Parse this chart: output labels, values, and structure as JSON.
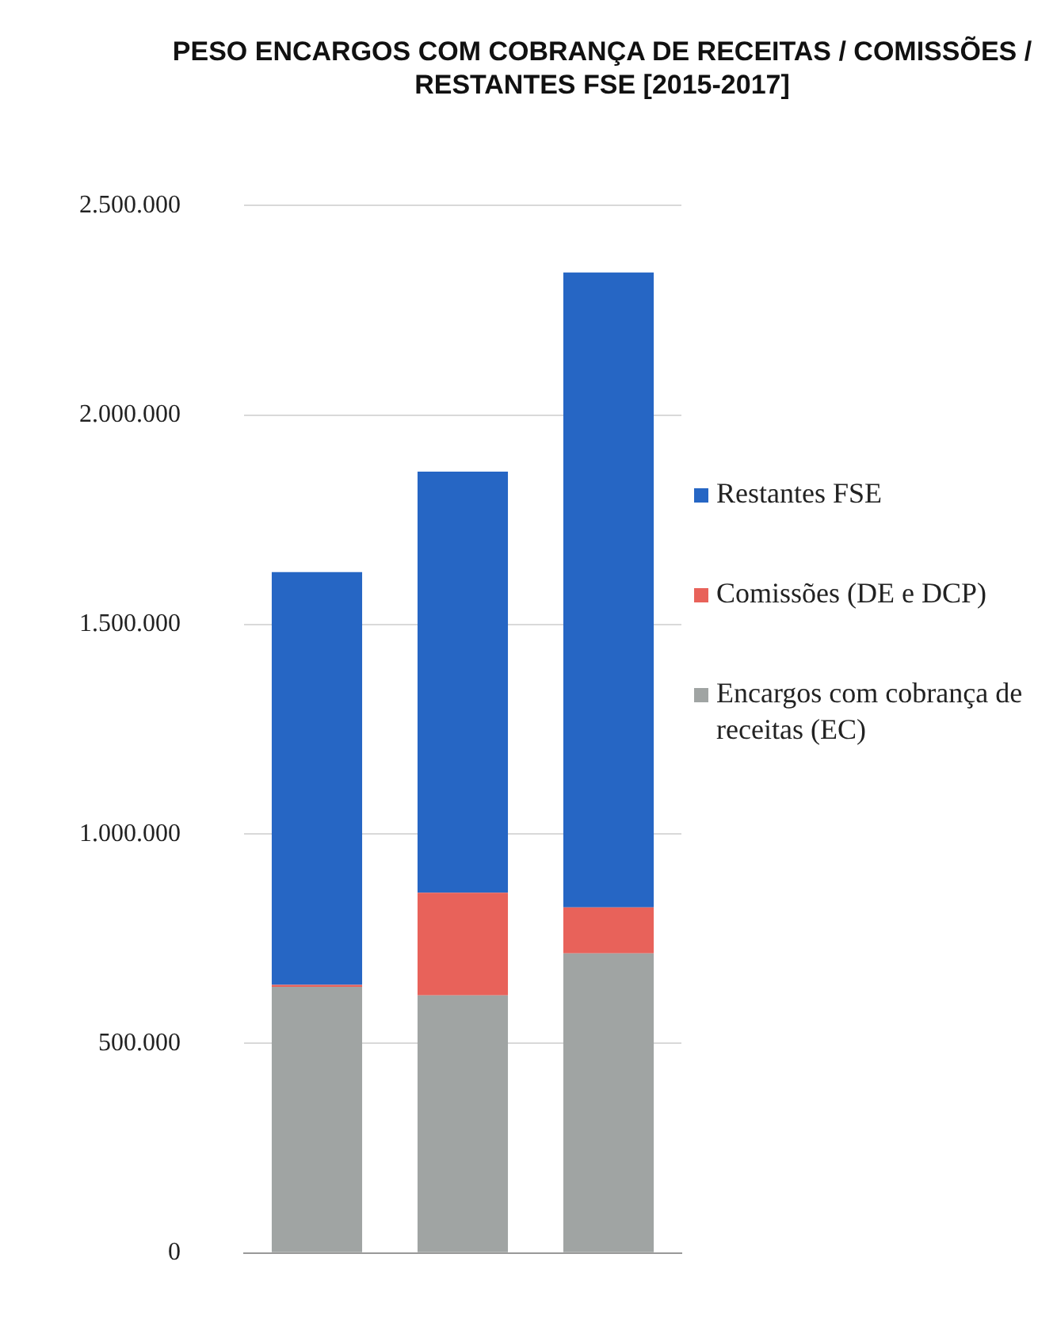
{
  "chart_data": {
    "type": "bar",
    "title": "PESO ENCARGOS COM COBRANÇA DE RECEITAS / COMISSÕES / RESTANTES FSE [2015-2017]",
    "categories": [
      null,
      null,
      null
    ],
    "stacked": true,
    "series": [
      {
        "name": "Encargos com cobrança de receitas (EC)",
        "color": "#a0a4a3",
        "values": [
          635000,
          615000,
          715000
        ]
      },
      {
        "name": "Comissões (DE e DCP)",
        "color": "#e8625a",
        "values": [
          5000,
          245000,
          110000
        ]
      },
      {
        "name": "Restantes FSE",
        "color": "#2666c4",
        "values": [
          985000,
          1005000,
          1515000
        ]
      }
    ],
    "ylim": [
      0,
      2500000
    ],
    "yticks": [
      {
        "value": 0,
        "label": "0"
      },
      {
        "value": 500000,
        "label": "500.000"
      },
      {
        "value": 1000000,
        "label": "1.000.000"
      },
      {
        "value": 1500000,
        "label": "1.500.000"
      },
      {
        "value": 2000000,
        "label": "2.000.000"
      },
      {
        "value": 2500000,
        "label": "2.500.000"
      }
    ],
    "grid": "y",
    "legend": "right"
  }
}
